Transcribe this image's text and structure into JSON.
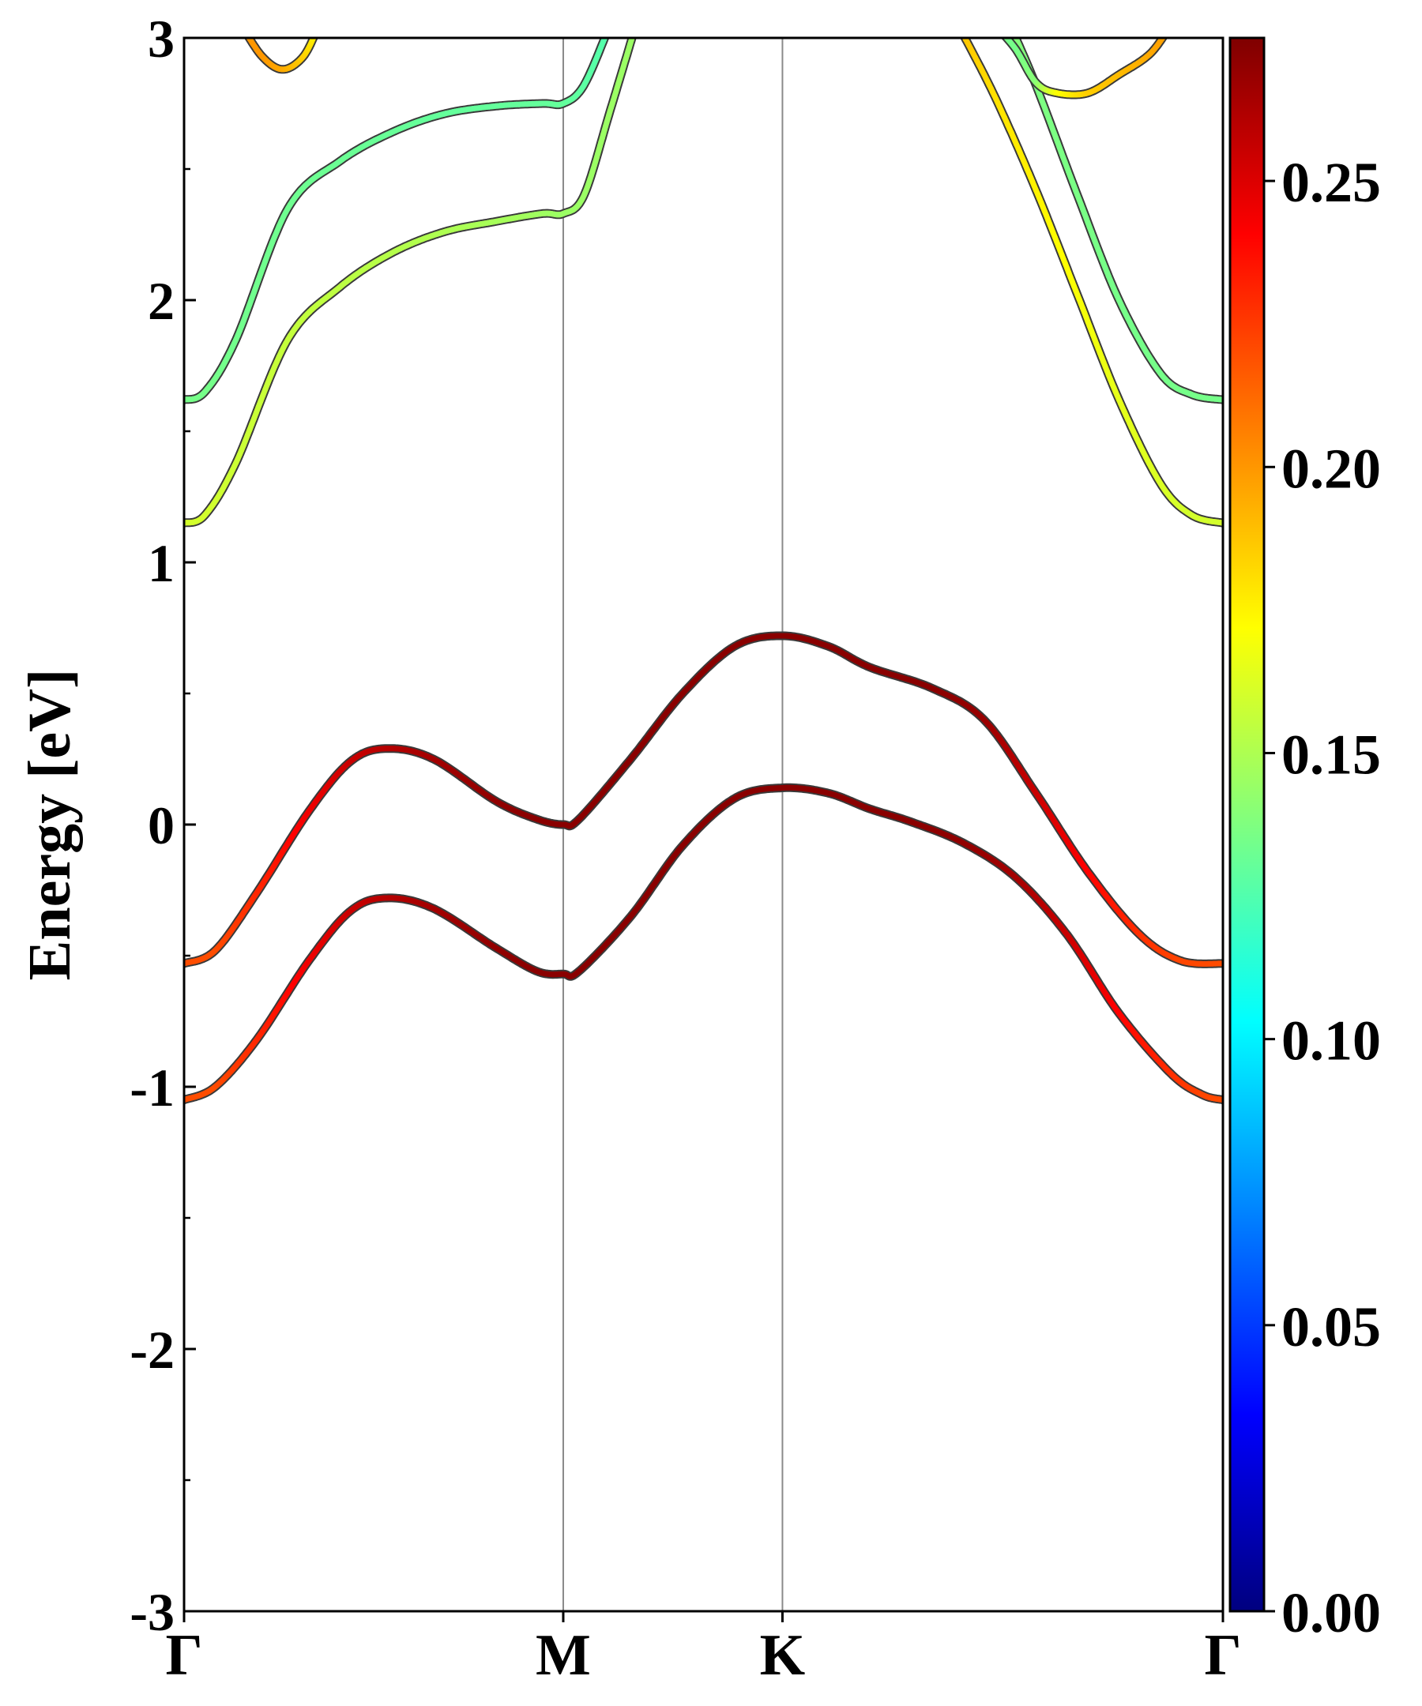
{
  "chart_data": {
    "type": "line",
    "ylabel": "Energy [eV]",
    "xlabel": "",
    "ylim": [
      -3,
      3
    ],
    "yticks": [
      "-3",
      "-2",
      "-1",
      "0",
      "1",
      "2",
      "3"
    ],
    "high_symmetry_points": [
      {
        "label": "Γ",
        "k": 0.0
      },
      {
        "label": "M",
        "k": 0.365
      },
      {
        "label": "K",
        "k": 0.576
      },
      {
        "label": "Γ",
        "k": 1.0
      }
    ],
    "colorbar": {
      "colormap": "jet",
      "range": [
        0.0,
        0.275
      ],
      "tick_labels": [
        "0.00",
        "0.05",
        "0.10",
        "0.15",
        "0.20",
        "0.25"
      ]
    },
    "series": [
      {
        "color_value": 0.22,
        "points": [
          [
            0.0,
            -1.05
          ],
          [
            0.03,
            -1.0
          ],
          [
            0.07,
            -0.82
          ],
          [
            0.12,
            -0.52
          ],
          [
            0.16,
            -0.33
          ],
          [
            0.195,
            -0.28
          ],
          [
            0.24,
            -0.32
          ],
          [
            0.3,
            -0.47
          ],
          [
            0.34,
            -0.56
          ],
          [
            0.365,
            -0.57
          ],
          [
            0.38,
            -0.56
          ],
          [
            0.43,
            -0.35
          ],
          [
            0.48,
            -0.08
          ],
          [
            0.53,
            0.1
          ],
          [
            0.576,
            0.14
          ],
          [
            0.62,
            0.12
          ],
          [
            0.66,
            0.06
          ],
          [
            0.7,
            0.01
          ],
          [
            0.75,
            -0.07
          ],
          [
            0.8,
            -0.2
          ],
          [
            0.85,
            -0.42
          ],
          [
            0.9,
            -0.72
          ],
          [
            0.95,
            -0.95
          ],
          [
            0.98,
            -1.03
          ],
          [
            1.0,
            -1.05
          ]
        ],
        "point_colors": [
          0.22,
          0.22,
          0.23,
          0.245,
          0.255,
          0.26,
          0.265,
          0.27,
          0.272,
          0.272,
          0.272,
          0.272,
          0.272,
          0.272,
          0.272,
          0.272,
          0.272,
          0.272,
          0.27,
          0.265,
          0.255,
          0.24,
          0.228,
          0.222,
          0.22
        ]
      },
      {
        "color_value": 0.22,
        "points": [
          [
            0.0,
            -0.53
          ],
          [
            0.03,
            -0.48
          ],
          [
            0.07,
            -0.26
          ],
          [
            0.12,
            0.05
          ],
          [
            0.16,
            0.24
          ],
          [
            0.195,
            0.29
          ],
          [
            0.24,
            0.25
          ],
          [
            0.3,
            0.09
          ],
          [
            0.34,
            0.02
          ],
          [
            0.365,
            0.0
          ],
          [
            0.38,
            0.02
          ],
          [
            0.43,
            0.25
          ],
          [
            0.48,
            0.5
          ],
          [
            0.53,
            0.68
          ],
          [
            0.576,
            0.72
          ],
          [
            0.62,
            0.68
          ],
          [
            0.66,
            0.6
          ],
          [
            0.72,
            0.52
          ],
          [
            0.77,
            0.4
          ],
          [
            0.82,
            0.12
          ],
          [
            0.87,
            -0.18
          ],
          [
            0.92,
            -0.42
          ],
          [
            0.96,
            -0.52
          ],
          [
            1.0,
            -0.53
          ]
        ],
        "point_colors": [
          0.22,
          0.22,
          0.23,
          0.245,
          0.255,
          0.26,
          0.265,
          0.27,
          0.272,
          0.272,
          0.272,
          0.272,
          0.272,
          0.272,
          0.272,
          0.272,
          0.272,
          0.272,
          0.268,
          0.255,
          0.24,
          0.228,
          0.222,
          0.22
        ]
      },
      {
        "color_value": 0.155,
        "points": [
          [
            0.0,
            1.15
          ],
          [
            0.02,
            1.18
          ],
          [
            0.05,
            1.38
          ],
          [
            0.1,
            1.85
          ],
          [
            0.15,
            2.05
          ],
          [
            0.2,
            2.18
          ],
          [
            0.25,
            2.26
          ],
          [
            0.3,
            2.3
          ],
          [
            0.345,
            2.33
          ],
          [
            0.365,
            2.33
          ],
          [
            0.385,
            2.4
          ],
          [
            0.41,
            2.72
          ],
          [
            0.435,
            3.05
          ]
        ],
        "point_colors": [
          0.16,
          0.16,
          0.158,
          0.156,
          0.154,
          0.152,
          0.15,
          0.148,
          0.146,
          0.145,
          0.145,
          0.145,
          0.145
        ]
      },
      {
        "color_value": 0.135,
        "points": [
          [
            0.0,
            1.62
          ],
          [
            0.02,
            1.65
          ],
          [
            0.05,
            1.85
          ],
          [
            0.1,
            2.35
          ],
          [
            0.15,
            2.53
          ],
          [
            0.2,
            2.64
          ],
          [
            0.25,
            2.71
          ],
          [
            0.3,
            2.74
          ],
          [
            0.345,
            2.75
          ],
          [
            0.365,
            2.75
          ],
          [
            0.385,
            2.82
          ],
          [
            0.41,
            3.05
          ]
        ],
        "point_colors": [
          0.135,
          0.135,
          0.134,
          0.133,
          0.132,
          0.131,
          0.13,
          0.13,
          0.13,
          0.13,
          0.128,
          0.125
        ]
      },
      {
        "color_value": 0.2,
        "points": [
          [
            0.055,
            3.05
          ],
          [
            0.075,
            2.93
          ],
          [
            0.095,
            2.88
          ],
          [
            0.115,
            2.93
          ],
          [
            0.13,
            3.05
          ]
        ],
        "point_colors": [
          0.2,
          0.2,
          0.195,
          0.185,
          0.17
        ]
      },
      {
        "color_value": 0.17,
        "points": [
          [
            0.745,
            3.05
          ],
          [
            0.78,
            2.78
          ],
          [
            0.82,
            2.42
          ],
          [
            0.86,
            2.02
          ],
          [
            0.9,
            1.62
          ],
          [
            0.94,
            1.3
          ],
          [
            0.97,
            1.18
          ],
          [
            1.0,
            1.15
          ]
        ],
        "point_colors": [
          0.19,
          0.18,
          0.175,
          0.17,
          0.165,
          0.162,
          0.16,
          0.16
        ]
      },
      {
        "color_value": 0.135,
        "points": [
          [
            0.795,
            3.05
          ],
          [
            0.82,
            2.82
          ],
          [
            0.86,
            2.4
          ],
          [
            0.9,
            2.0
          ],
          [
            0.94,
            1.72
          ],
          [
            0.97,
            1.64
          ],
          [
            1.0,
            1.62
          ]
        ],
        "point_colors": [
          0.14,
          0.137,
          0.136,
          0.135,
          0.135,
          0.135,
          0.135
        ]
      },
      {
        "color_value": 0.135,
        "points": [
          [
            0.78,
            3.05
          ],
          [
            0.8,
            2.96
          ],
          [
            0.82,
            2.83
          ],
          [
            0.84,
            2.79
          ],
          [
            0.87,
            2.79
          ],
          [
            0.9,
            2.86
          ],
          [
            0.93,
            2.94
          ],
          [
            0.95,
            3.05
          ]
        ],
        "point_colors": [
          0.135,
          0.135,
          0.14,
          0.17,
          0.185,
          0.19,
          0.195,
          0.2
        ]
      }
    ]
  }
}
